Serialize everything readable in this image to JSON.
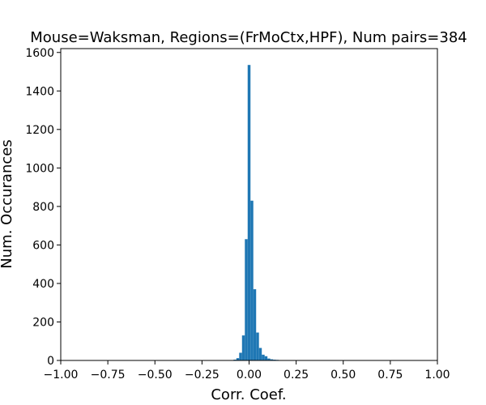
{
  "chart_data": {
    "type": "bar",
    "title": "Mouse=Waksman, Regions=(FrMoCtx,HPF), Num pairs=384",
    "xlabel": "Corr. Coef.",
    "ylabel": "Num. Occurances",
    "xlim": [
      -1.0,
      1.0
    ],
    "ylim": [
      0,
      1620
    ],
    "xticks": [
      "−1.00",
      "−0.75",
      "−0.50",
      "−0.25",
      "0.00",
      "0.25",
      "0.50",
      "0.75",
      "1.00"
    ],
    "xtick_values": [
      -1.0,
      -0.75,
      -0.5,
      -0.25,
      0.0,
      0.25,
      0.5,
      0.75,
      1.0
    ],
    "yticks": [
      "0",
      "200",
      "400",
      "600",
      "800",
      "1000",
      "1200",
      "1400",
      "1600"
    ],
    "ytick_values": [
      0,
      200,
      400,
      600,
      800,
      1000,
      1200,
      1400,
      1600
    ],
    "bar_color": "#1f77b4",
    "bin_width": 0.015,
    "bins": [
      {
        "x": -0.075,
        "value": 4
      },
      {
        "x": -0.06,
        "value": 12
      },
      {
        "x": -0.045,
        "value": 40
      },
      {
        "x": -0.03,
        "value": 130
      },
      {
        "x": -0.015,
        "value": 630
      },
      {
        "x": 0.0,
        "value": 1535
      },
      {
        "x": 0.015,
        "value": 830
      },
      {
        "x": 0.03,
        "value": 370
      },
      {
        "x": 0.045,
        "value": 145
      },
      {
        "x": 0.06,
        "value": 65
      },
      {
        "x": 0.075,
        "value": 30
      },
      {
        "x": 0.09,
        "value": 22
      },
      {
        "x": 0.105,
        "value": 10
      },
      {
        "x": 0.12,
        "value": 6
      },
      {
        "x": 0.135,
        "value": 4
      },
      {
        "x": 0.15,
        "value": 3
      },
      {
        "x": 0.18,
        "value": 2
      },
      {
        "x": 0.225,
        "value": 1
      }
    ]
  }
}
